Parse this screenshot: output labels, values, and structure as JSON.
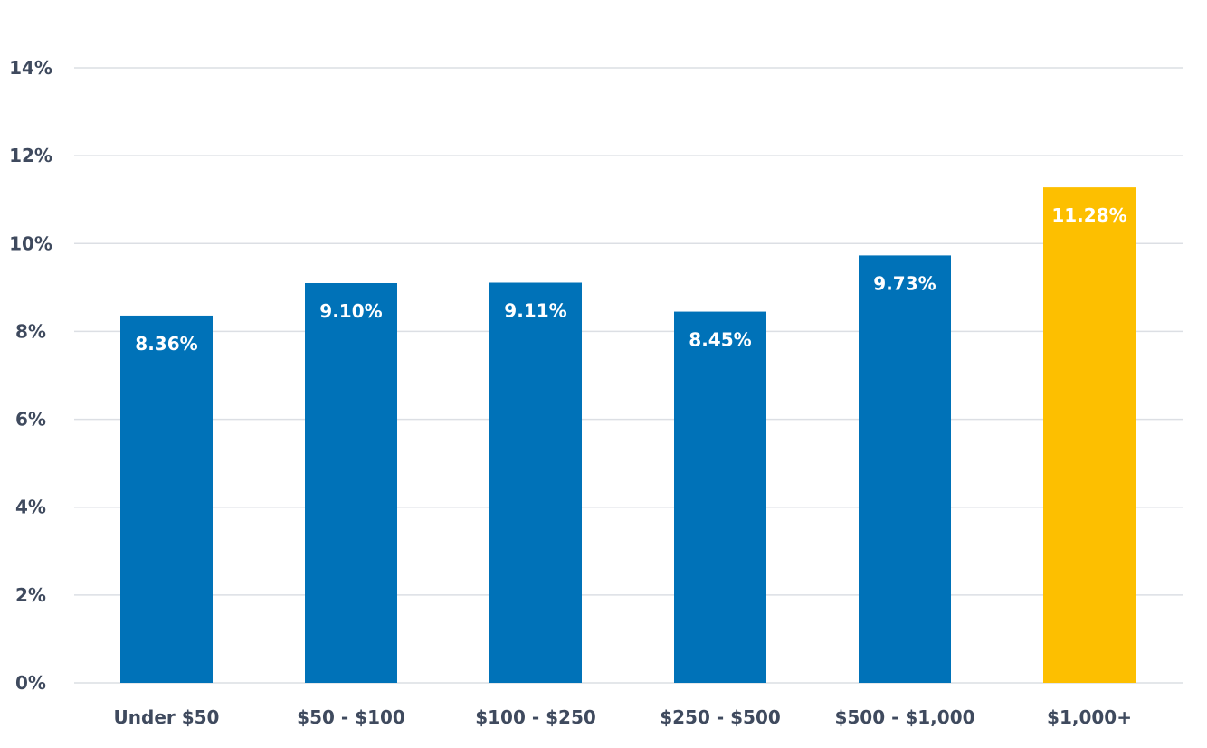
{
  "chart_data": {
    "type": "bar",
    "title": "",
    "xlabel": "",
    "ylabel": "",
    "ylim": [
      0,
      14
    ],
    "y_ticks": [
      0,
      2,
      4,
      6,
      8,
      10,
      12,
      14
    ],
    "y_tick_labels": [
      "0%",
      "2%",
      "4%",
      "6%",
      "8%",
      "10%",
      "12%",
      "14%"
    ],
    "grid": true,
    "categories": [
      "Under $50",
      "$50 - $100",
      "$100 - $250",
      "$250 - $500",
      "$500 - $1,000",
      "$1,000+"
    ],
    "values": [
      8.36,
      9.1,
      9.11,
      8.45,
      9.73,
      11.28
    ],
    "data_labels": [
      "8.36%",
      "9.10%",
      "9.11%",
      "8.45%",
      "9.73%",
      "11.28%"
    ],
    "colors": {
      "default_bar": "#0072b8",
      "highlight_bar": "#fdbf00",
      "highlight_index": 5
    }
  }
}
